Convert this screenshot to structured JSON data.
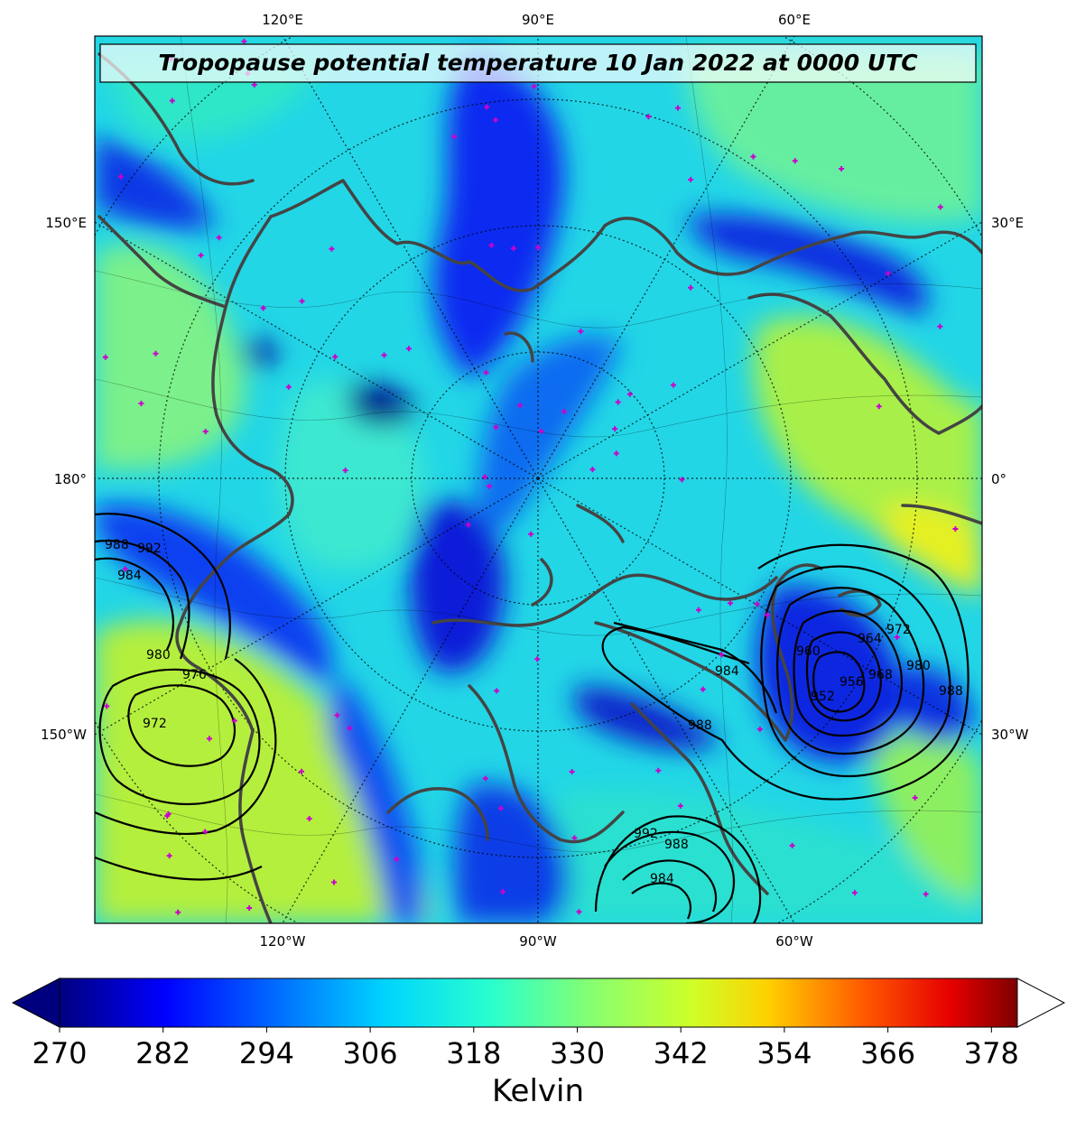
{
  "title": "Tropopause potential temperature 10 Jan 2022 at 0000 UTC",
  "longitude_labels": {
    "top": [
      "120°E",
      "90°E",
      "60°E"
    ],
    "bottom": [
      "120°W",
      "90°W",
      "60°W"
    ],
    "left": [
      "150°E",
      "180°",
      "150°W"
    ],
    "right": [
      "30°E",
      "0°",
      "30°W"
    ]
  },
  "colorbar": {
    "unit_label": "Kelvin",
    "ticks": [
      "270",
      "282",
      "294",
      "306",
      "318",
      "330",
      "342",
      "354",
      "366",
      "378"
    ],
    "min": 270,
    "max": 381,
    "extend": "both",
    "colormap": "jet",
    "colors": [
      "#00007f",
      "#0000ff",
      "#007fff",
      "#00ffff",
      "#7fff7f",
      "#ffff00",
      "#ff7f00",
      "#ff0000",
      "#7f0000"
    ]
  },
  "isobar_labels": [
    {
      "value": "988",
      "place": "west-upper"
    },
    {
      "value": "992",
      "place": "west-upper"
    },
    {
      "value": "984",
      "place": "west-upper"
    },
    {
      "value": "980",
      "place": "west-middle"
    },
    {
      "value": "976",
      "place": "west-middle"
    },
    {
      "value": "972",
      "place": "west-lower"
    },
    {
      "value": "984",
      "place": "east-low-tail"
    },
    {
      "value": "960",
      "place": "east-low"
    },
    {
      "value": "964",
      "place": "east-low"
    },
    {
      "value": "956",
      "place": "east-low"
    },
    {
      "value": "952",
      "place": "east-low-center"
    },
    {
      "value": "968",
      "place": "east-low"
    },
    {
      "value": "972",
      "place": "east-low"
    },
    {
      "value": "980",
      "place": "east-low"
    },
    {
      "value": "988",
      "place": "east-low-outer"
    },
    {
      "value": "988",
      "place": "south-tail"
    },
    {
      "value": "992",
      "place": "south-low"
    },
    {
      "value": "988",
      "place": "south-low"
    },
    {
      "value": "984",
      "place": "south-low"
    }
  ]
}
